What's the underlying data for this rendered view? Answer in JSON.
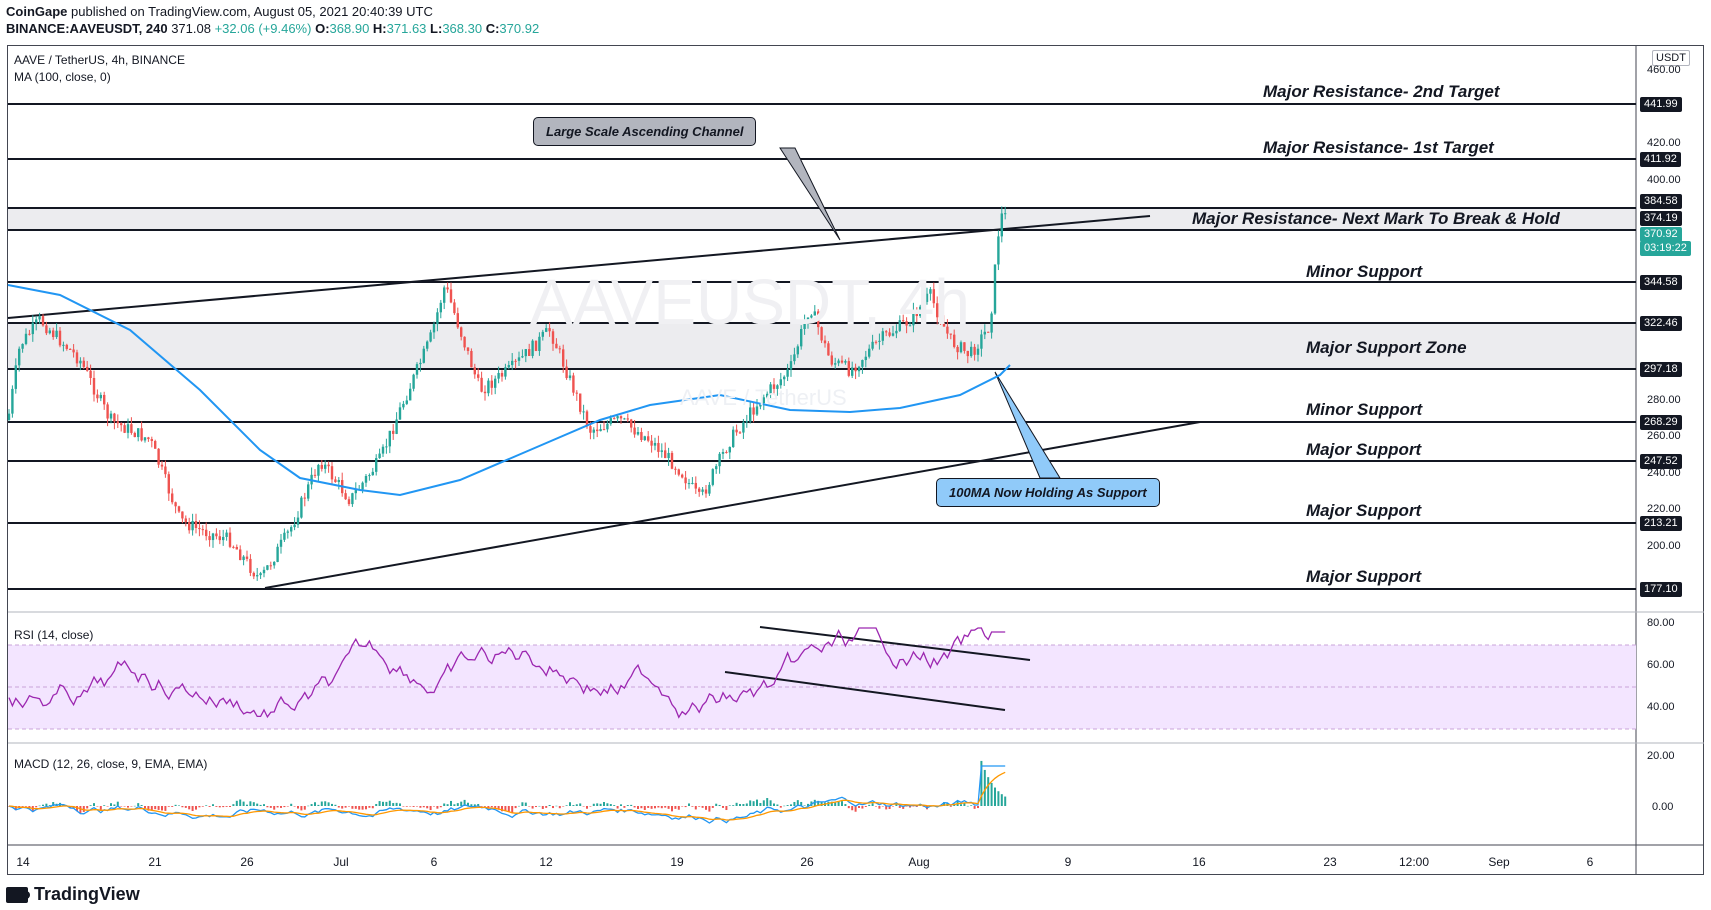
{
  "header": {
    "publisher": "CoinGape",
    "published_text": "published on TradingView.com, August 05, 2021 20:40:39 UTC",
    "symbol": "BINANCE:AAVEUSDT, 240",
    "last": "371.08",
    "change": "+32.06 (+9.46%)",
    "o_label": "O:",
    "o": "368.90",
    "h_label": "H:",
    "h": "371.63",
    "l_label": "L:",
    "l": "368.30",
    "c_label": "C:",
    "c": "370.92"
  },
  "chart": {
    "title": "AAVE / TetherUS, 4h, BINANCE",
    "ma_legend": "MA (100, close, 0)",
    "watermark": "AAVEUSDT, 4h",
    "watermark_sub": "AAVE / TetherUS",
    "currency": "USDT",
    "price_axis_ticks": [
      "460.00",
      "420.00",
      "400.00",
      "280.00",
      "260.00",
      "240.00",
      "220.00",
      "200.00"
    ],
    "price_tags": [
      "441.99",
      "411.92",
      "384.58",
      "374.19",
      "370.92",
      "03:19:22",
      "344.58",
      "322.46",
      "297.18",
      "268.29",
      "247.52",
      "213.21",
      "177.10"
    ],
    "levels": [
      "Major Resistance- 2nd Target",
      "Major Resistance- 1st Target",
      "Major Resistance- Next Mark To Break & Hold",
      "Minor Support",
      "Major Support Zone",
      "Minor Support",
      "Major Support",
      "Major Support",
      "Major Support"
    ],
    "callouts": {
      "channel": "Large Scale Ascending Channel",
      "ma_support": "100MA Now Holding As Support"
    },
    "dates": [
      "14",
      "21",
      "26",
      "Jul",
      "6",
      "12",
      "19",
      "26",
      "Aug",
      "9",
      "16",
      "23",
      "12:00",
      "Sep",
      "6"
    ]
  },
  "rsi": {
    "legend": "RSI (14, close)",
    "ticks": [
      "80.00",
      "60.00",
      "40.00"
    ]
  },
  "macd": {
    "legend": "MACD (12, 26, close, 9, EMA, EMA)",
    "ticks": [
      "20.00",
      "0.00"
    ]
  },
  "footer": {
    "brand": "TradingView"
  },
  "colors": {
    "ma_line": "#2196f3",
    "up": "#26a69a",
    "down": "#ef5350",
    "rsi_band": "#f3e5ff",
    "rsi_line": "#9c27b0",
    "callout_gray": "#b2b5be",
    "callout_blue": "#90caf9"
  }
}
